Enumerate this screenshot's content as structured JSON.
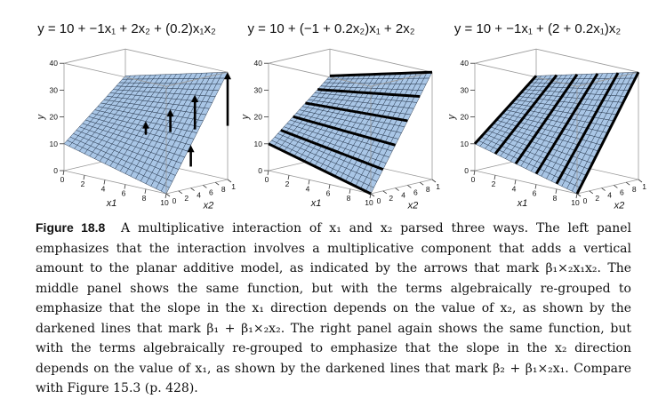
{
  "figure": {
    "panels": [
      {
        "title": "y = 10 + −1x₁ + 2x₂ + (0.2)x₁x₂",
        "variant": "arrows"
      },
      {
        "title": "y = 10 + (−1 + 0.2x₂)x₁ + 2x₂",
        "variant": "x1lines"
      },
      {
        "title": "y = 10 + −1x₁ + (2 + 0.2x₁)x₂",
        "variant": "x2lines"
      }
    ],
    "axes": {
      "z_label": "y",
      "x1_label": "x1",
      "x2_label": "x2",
      "z_ticks": [
        "0",
        "10",
        "20",
        "30",
        "40"
      ],
      "x1_ticks": [
        "0",
        "2",
        "4",
        "6",
        "8",
        "10"
      ],
      "x2_ticks": [
        "0",
        "2",
        "4",
        "6",
        "8",
        "10"
      ]
    },
    "surface_color": "#a9c6e6"
  },
  "caption": {
    "label": "Figure 18.8",
    "text": "A multiplicative interaction of x₁ and x₂ parsed three ways. The left panel emphasizes that the interaction involves a multiplicative component that adds a vertical amount to the planar additive model, as indicated by the arrows that mark β₁×₂x₁x₂. The middle panel shows the same function, but with the terms algebraically re-grouped to emphasize that the slope in the x₁ direction depends on the value of x₂, as shown by the darkened lines that mark β₁ + β₁×₂x₂. The right panel again shows the same function, but with the terms algebraically re-grouped to emphasize that the slope in the x₂ direction depends on the value of x₁, as shown by the darkened lines that mark β₂ + β₁×₂x₁. Compare with Figure 15.3 (p. 428)."
  }
}
